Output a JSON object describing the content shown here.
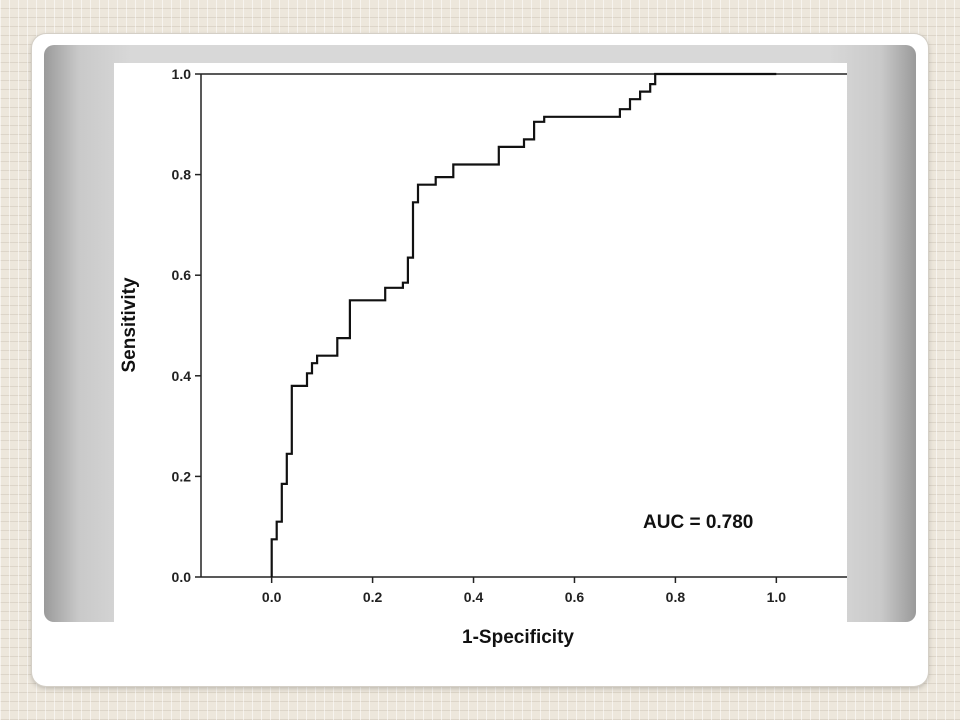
{
  "chart_data": {
    "type": "line",
    "title": "",
    "xlabel": "1-Specificity",
    "ylabel": "Sensitivity",
    "xlim": [
      -0.14,
      1.14
    ],
    "ylim": [
      0.0,
      1.0
    ],
    "x_ticks": [
      "0.0",
      "0.2",
      "0.4",
      "0.6",
      "0.8",
      "1.0"
    ],
    "y_ticks": [
      "0.0",
      "0.2",
      "0.4",
      "0.6",
      "0.8",
      "1.0"
    ],
    "grid": false,
    "legend": "none",
    "line_color": "#111111",
    "annotation": "AUC = 0.780",
    "series": [
      {
        "x": [
          0.0,
          0.0,
          0.01,
          0.01,
          0.02,
          0.02,
          0.03,
          0.03,
          0.04,
          0.04,
          0.05,
          0.05,
          0.07,
          0.07,
          0.08,
          0.08,
          0.09,
          0.09,
          0.13,
          0.13,
          0.155,
          0.155,
          0.225,
          0.225,
          0.26,
          0.26,
          0.27,
          0.27,
          0.28,
          0.28,
          0.29,
          0.29,
          0.325,
          0.325,
          0.36,
          0.36,
          0.45,
          0.45,
          0.5,
          0.5,
          0.52,
          0.52,
          0.54,
          0.54,
          0.69,
          0.69,
          0.71,
          0.71,
          0.73,
          0.73,
          0.75,
          0.75,
          0.76,
          0.76,
          1.0
        ],
        "y": [
          0.0,
          0.075,
          0.075,
          0.11,
          0.11,
          0.185,
          0.185,
          0.245,
          0.245,
          0.38,
          0.38,
          0.38,
          0.38,
          0.405,
          0.405,
          0.425,
          0.425,
          0.44,
          0.44,
          0.475,
          0.475,
          0.55,
          0.55,
          0.575,
          0.575,
          0.585,
          0.585,
          0.635,
          0.635,
          0.745,
          0.745,
          0.78,
          0.78,
          0.795,
          0.795,
          0.82,
          0.82,
          0.855,
          0.855,
          0.87,
          0.87,
          0.905,
          0.905,
          0.915,
          0.915,
          0.93,
          0.93,
          0.95,
          0.95,
          0.965,
          0.965,
          0.98,
          0.98,
          1.0,
          1.0
        ]
      }
    ]
  }
}
